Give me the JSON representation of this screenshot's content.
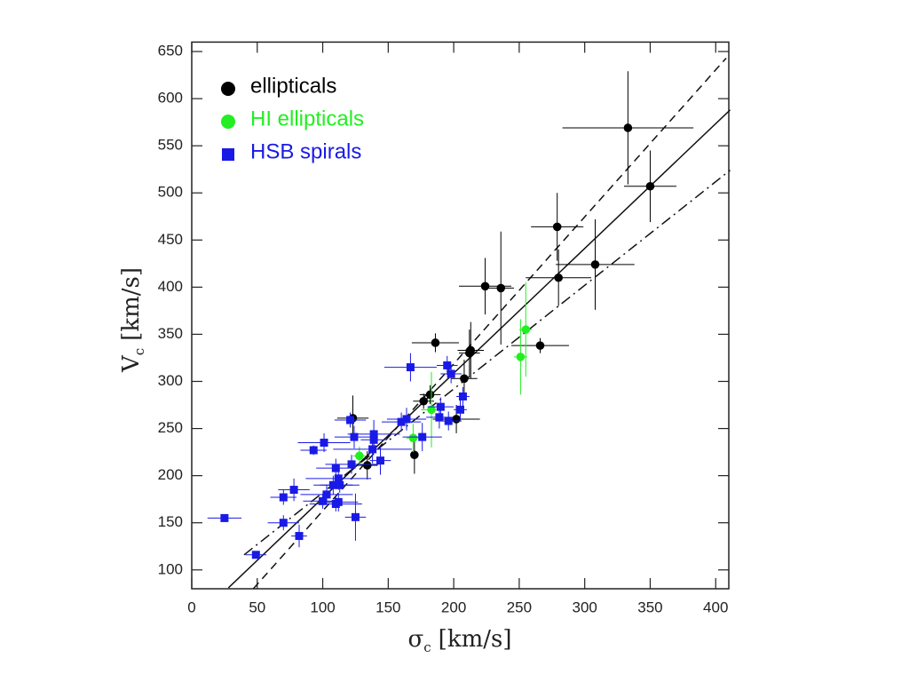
{
  "chart_data": {
    "type": "scatter",
    "xlabel": {
      "symbol": "σ",
      "subscript": "c",
      "unit": "[km/s]"
    },
    "ylabel": {
      "symbol": "V",
      "subscript": "c",
      "unit": "[km/s]"
    },
    "xlim": [
      0,
      410
    ],
    "ylim": [
      80,
      660
    ],
    "xticks": [
      0,
      50,
      100,
      150,
      200,
      250,
      300,
      350,
      400
    ],
    "yticks": [
      100,
      150,
      200,
      250,
      300,
      350,
      400,
      450,
      500,
      550,
      600,
      650
    ],
    "legend": "upper left",
    "series": [
      {
        "name": "ellipticals",
        "color": "#000000",
        "marker": "circle",
        "x": [
          333,
          350,
          279,
          280,
          308,
          224,
          236,
          186,
          266,
          213,
          212,
          208,
          182,
          177,
          202,
          123,
          170,
          134
        ],
        "values": [
          569,
          507,
          464,
          410,
          424,
          401,
          399,
          341,
          338,
          333,
          330,
          303,
          286,
          279,
          260,
          261,
          222,
          211
        ],
        "xerr": [
          50,
          20,
          20,
          25,
          30,
          20,
          10,
          18,
          22,
          10,
          8,
          10,
          8,
          8,
          18,
          12,
          3,
          8
        ],
        "yerr": [
          60,
          38,
          36,
          30,
          48,
          30,
          60,
          10,
          8,
          30,
          25,
          20,
          10,
          8,
          15,
          24,
          20,
          15
        ]
      },
      {
        "name": "HI ellipticals",
        "color": "#22ee22",
        "marker": "circle",
        "x": [
          255,
          251,
          183,
          169,
          128
        ],
        "values": [
          355,
          326,
          270,
          240,
          221
        ],
        "xerr": [
          5,
          5,
          8,
          5,
          5
        ],
        "yerr": [
          50,
          40,
          40,
          15,
          10
        ]
      },
      {
        "name": "HSB spirals",
        "color": "#1a1ae6",
        "marker": "square",
        "x": [
          25,
          49,
          70,
          70,
          78,
          82,
          93,
          101,
          100,
          103,
          108,
          110,
          110,
          112,
          113,
          112,
          121,
          122,
          124,
          125,
          139,
          139,
          138,
          144,
          160,
          164,
          167,
          176,
          189,
          190,
          195,
          198,
          196,
          205,
          207
        ],
        "values": [
          155,
          116,
          177,
          150,
          185,
          136,
          227,
          235,
          173,
          180,
          190,
          208,
          170,
          197,
          190,
          172,
          259,
          212,
          241,
          156,
          244,
          238,
          228,
          216,
          257,
          260,
          315,
          241,
          262,
          273,
          317,
          308,
          258,
          270,
          284
        ],
        "xerr": [
          13,
          8,
          10,
          12,
          12,
          6,
          10,
          20,
          15,
          20,
          15,
          15,
          20,
          25,
          15,
          15,
          12,
          20,
          15,
          8,
          20,
          10,
          30,
          8,
          15,
          15,
          20,
          15,
          10,
          10,
          8,
          8,
          10,
          5,
          5
        ],
        "yerr": [
          3,
          3,
          8,
          8,
          12,
          12,
          5,
          10,
          8,
          10,
          10,
          10,
          8,
          12,
          8,
          10,
          8,
          10,
          12,
          25,
          15,
          10,
          15,
          15,
          10,
          12,
          15,
          15,
          12,
          10,
          10,
          10,
          10,
          10,
          10
        ]
      }
    ],
    "fits": [
      {
        "style": "solid",
        "x": [
          28,
          411
        ],
        "values": [
          81,
          588
        ]
      },
      {
        "style": "dashed",
        "x": [
          47,
          408
        ],
        "values": [
          80,
          643
        ]
      },
      {
        "style": "dashdot",
        "x": [
          40,
          411
        ],
        "values": [
          116,
          524
        ]
      }
    ]
  }
}
